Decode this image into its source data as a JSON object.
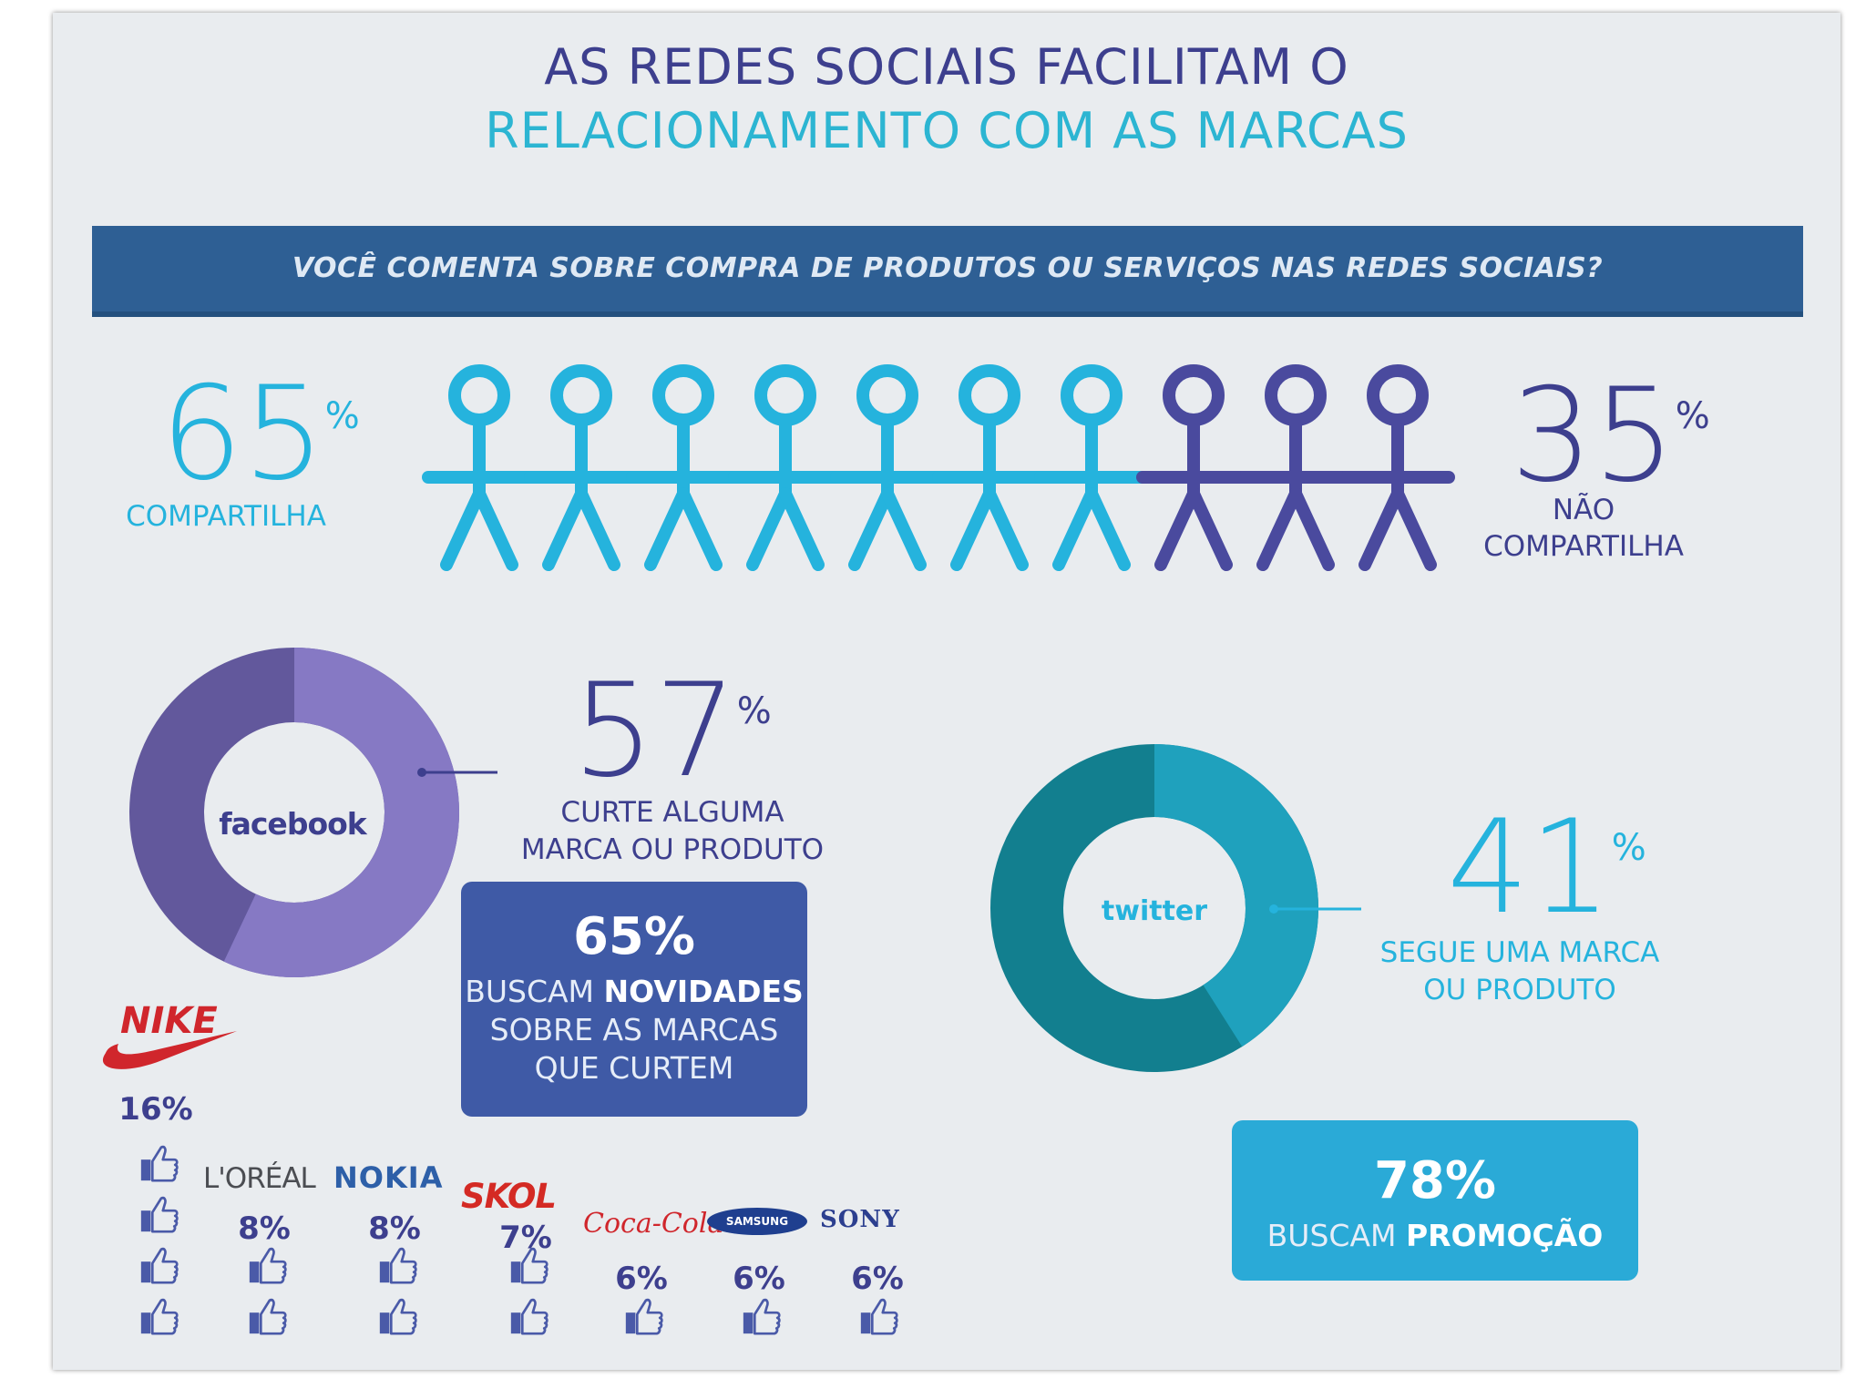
{
  "title": {
    "line1": "AS REDES SOCIAIS FACILITAM O",
    "line2": "RELACIONAMENTO COM AS MARCAS"
  },
  "question": "VOCÊ COMENTA SOBRE COMPRA DE PRODUTOS OU SERVIÇOS NAS REDES SOCIAIS?",
  "share": {
    "yes": {
      "value": "65",
      "pct": "%",
      "label": "COMPARTILHA"
    },
    "no": {
      "value": "35",
      "pct": "%",
      "label1": "NÃO",
      "label2": "COMPARTILHA"
    },
    "people_total": 10,
    "people_yes": 7
  },
  "facebook": {
    "logo": "facebook",
    "value": "57",
    "pct": "%",
    "label1": "CURTE ALGUMA",
    "label2": "MARCA OU PRODUTO",
    "fraction": 0.57,
    "callout": {
      "value": "65%",
      "pre": "BUSCAM ",
      "bold": "NOVIDADES",
      "line2": "SOBRE AS MARCAS",
      "line3": "QUE CURTEM"
    }
  },
  "twitter": {
    "logo": "twitter",
    "value": "41",
    "pct": "%",
    "label1": "SEGUE UMA MARCA",
    "label2": "OU PRODUTO",
    "fraction": 0.41,
    "callout": {
      "value": "78%",
      "pre": "BUSCAM ",
      "bold": "PROMOÇÃO"
    }
  },
  "brands": [
    {
      "name": "NIKE",
      "value": "16%",
      "likes": 4
    },
    {
      "name": "L'ORÉAL",
      "value": "8%",
      "likes": 2
    },
    {
      "name": "NOKIA",
      "value": "8%",
      "likes": 2
    },
    {
      "name": "SKOL",
      "value": "7%",
      "likes": 2
    },
    {
      "name": "Coca-Cola",
      "value": "6%",
      "likes": 1
    },
    {
      "name": "SAMSUNG",
      "value": "6%",
      "likes": 1
    },
    {
      "name": "SONY",
      "value": "6%",
      "likes": 1
    }
  ],
  "colors": {
    "title_dark": "#3d3f8e",
    "title_light": "#2cb5d2",
    "banner": "#2e5f94",
    "people_yes": "#25b3dd",
    "people_no": "#4a4a9e",
    "facebook_light": "#8679c4",
    "facebook_dark": "#62589c",
    "twitter_light": "#1fa1bd",
    "twitter_dark": "#127f8f",
    "callout_fb": "#3f5aa6",
    "callout_tw": "#2aaad7"
  }
}
